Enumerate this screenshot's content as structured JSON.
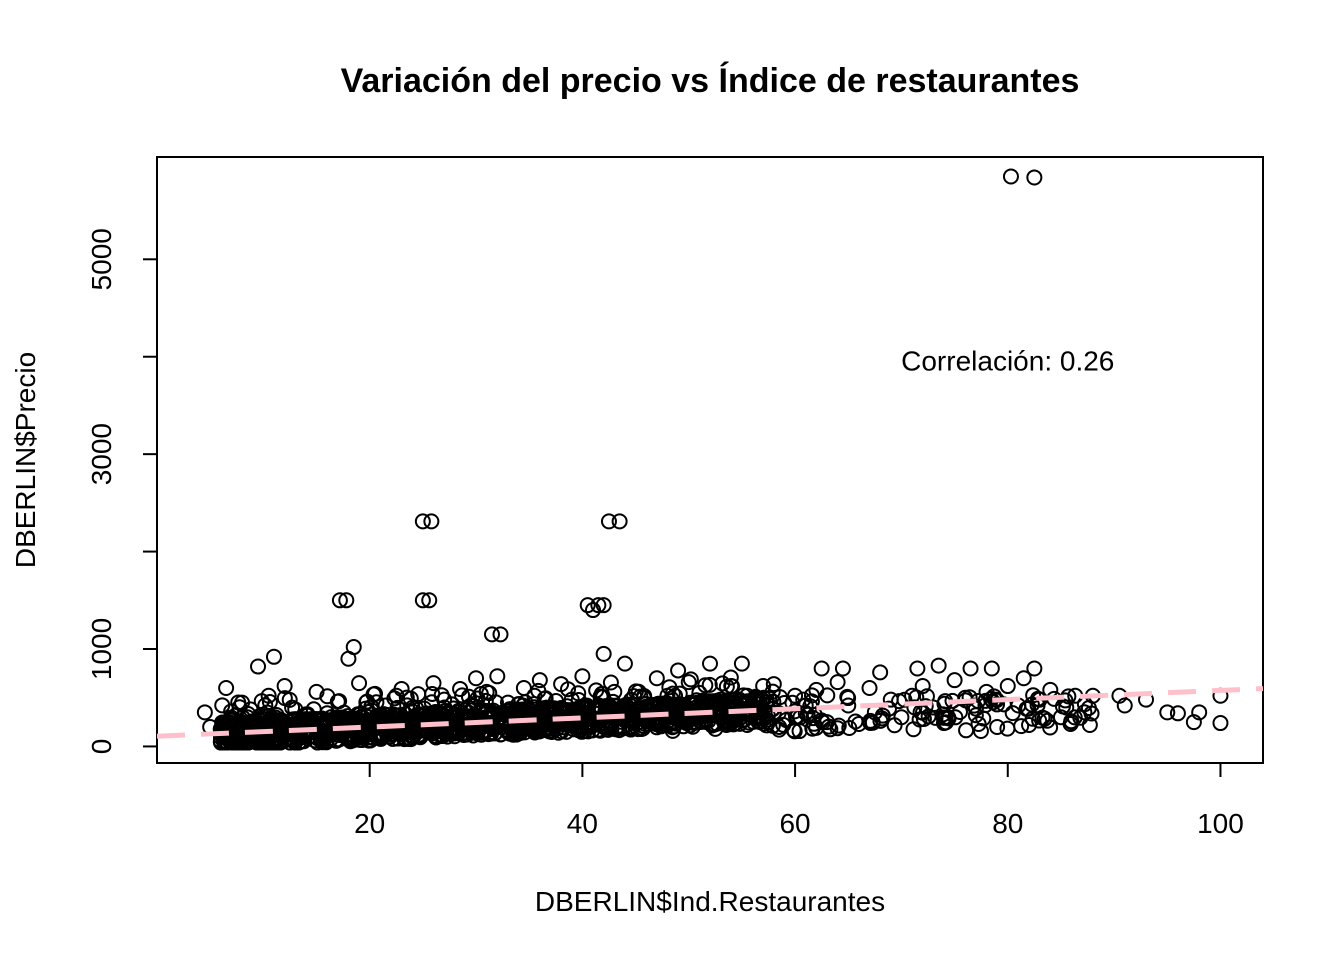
{
  "chart_data": {
    "type": "scatter",
    "title": "Variación del precio vs Índice de restaurantes",
    "xlabel": "DBERLIN$Ind.Restaurantes",
    "ylabel": "DBERLIN$Precio",
    "xlim": [
      0,
      104
    ],
    "ylim": [
      -170,
      6050
    ],
    "xticks": [
      20,
      40,
      60,
      80,
      100
    ],
    "yticks": [
      0,
      1000,
      2000,
      3000,
      4000,
      5000
    ],
    "ytick_labels": [
      "0",
      "1000",
      "",
      "3000",
      "",
      "5000"
    ],
    "grid": false,
    "annotation": {
      "text": "Correlación: 0.26",
      "x": 80,
      "y": 3960
    },
    "trendline": {
      "intercept": 105,
      "slope": 4.7,
      "style": "dashed",
      "color": "#FFC0CB"
    },
    "points_sampled_note": "",
    "points": [
      [
        4.5,
        350
      ],
      [
        5,
        200
      ],
      [
        6,
        180
      ],
      [
        6.5,
        600
      ],
      [
        7,
        120
      ],
      [
        7.5,
        220
      ],
      [
        8,
        450
      ],
      [
        8.5,
        300
      ],
      [
        9,
        90
      ],
      [
        9.5,
        820
      ],
      [
        10,
        150
      ],
      [
        10.5,
        520
      ],
      [
        11,
        920
      ],
      [
        11.5,
        250
      ],
      [
        12,
        620
      ],
      [
        12.5,
        180
      ],
      [
        13,
        380
      ],
      [
        13.5,
        90
      ],
      [
        14,
        280
      ],
      [
        14.5,
        150
      ],
      [
        15,
        560
      ],
      [
        15.5,
        210
      ],
      [
        16,
        340
      ],
      [
        16.5,
        120
      ],
      [
        17,
        460
      ],
      [
        17.2,
        1500
      ],
      [
        17.8,
        1500
      ],
      [
        18,
        900
      ],
      [
        18.5,
        1020
      ],
      [
        19,
        650
      ],
      [
        19.5,
        260
      ],
      [
        20,
        180
      ],
      [
        20.5,
        540
      ],
      [
        21,
        130
      ],
      [
        21.5,
        420
      ],
      [
        22,
        300
      ],
      [
        22.5,
        200
      ],
      [
        23,
        590
      ],
      [
        23.5,
        150
      ],
      [
        24,
        360
      ],
      [
        25,
        2310
      ],
      [
        25.8,
        2310
      ],
      [
        25,
        1500
      ],
      [
        25.6,
        1500
      ],
      [
        26,
        650
      ],
      [
        26.5,
        250
      ],
      [
        27,
        480
      ],
      [
        27.5,
        160
      ],
      [
        28,
        330
      ],
      [
        28.5,
        590
      ],
      [
        29,
        200
      ],
      [
        29.5,
        420
      ],
      [
        30,
        700
      ],
      [
        30.5,
        140
      ],
      [
        31,
        560
      ],
      [
        31.5,
        1150
      ],
      [
        32.3,
        1150
      ],
      [
        32,
        720
      ],
      [
        32.5,
        260
      ],
      [
        33,
        450
      ],
      [
        33.5,
        120
      ],
      [
        34,
        350
      ],
      [
        34.5,
        600
      ],
      [
        35,
        210
      ],
      [
        35.5,
        520
      ],
      [
        36,
        680
      ],
      [
        36.5,
        170
      ],
      [
        37,
        400
      ],
      [
        37.5,
        280
      ],
      [
        38,
        640
      ],
      [
        38.5,
        150
      ],
      [
        39,
        480
      ],
      [
        39.5,
        330
      ],
      [
        40,
        720
      ],
      [
        40.5,
        1450
      ],
      [
        41,
        1400
      ],
      [
        41.5,
        1450
      ],
      [
        42,
        1450
      ],
      [
        42,
        950
      ],
      [
        42.5,
        2310
      ],
      [
        43.5,
        2310
      ],
      [
        43,
        560
      ],
      [
        43.5,
        300
      ],
      [
        44,
        850
      ],
      [
        44.5,
        200
      ],
      [
        45,
        420
      ],
      [
        46,
        260
      ],
      [
        47,
        700
      ],
      [
        48,
        520
      ],
      [
        48.5,
        160
      ],
      [
        49,
        780
      ],
      [
        49.5,
        330
      ],
      [
        50,
        660
      ],
      [
        50.5,
        240
      ],
      [
        51,
        550
      ],
      [
        52,
        850
      ],
      [
        52.5,
        180
      ],
      [
        53,
        480
      ],
      [
        53.5,
        300
      ],
      [
        54,
        620
      ],
      [
        55,
        850
      ],
      [
        55.5,
        220
      ],
      [
        56,
        400
      ],
      [
        57,
        620
      ],
      [
        58,
        640
      ],
      [
        58.5,
        200
      ],
      [
        60,
        520
      ],
      [
        60.5,
        300
      ],
      [
        61,
        420
      ],
      [
        62,
        580
      ],
      [
        62.5,
        800
      ],
      [
        63,
        250
      ],
      [
        64,
        660
      ],
      [
        64.5,
        800
      ],
      [
        65,
        420
      ],
      [
        66,
        230
      ],
      [
        67,
        600
      ],
      [
        67.5,
        350
      ],
      [
        68,
        760
      ],
      [
        69,
        480
      ],
      [
        70,
        300
      ],
      [
        71,
        520
      ],
      [
        71.5,
        800
      ],
      [
        72,
        620
      ],
      [
        73,
        400
      ],
      [
        73.5,
        830
      ],
      [
        74,
        240
      ],
      [
        75,
        680
      ],
      [
        76,
        500
      ],
      [
        76.5,
        800
      ],
      [
        77,
        320
      ],
      [
        78,
        560
      ],
      [
        78.5,
        800
      ],
      [
        79,
        200
      ],
      [
        80,
        620
      ],
      [
        80.3,
        5850
      ],
      [
        82.5,
        5840
      ],
      [
        81,
        420
      ],
      [
        81.5,
        700
      ],
      [
        82,
        220
      ],
      [
        82.5,
        800
      ],
      [
        83,
        480
      ],
      [
        84,
        580
      ],
      [
        85,
        300
      ],
      [
        85.5,
        400
      ],
      [
        86,
        250
      ],
      [
        88,
        520
      ],
      [
        90.5,
        520
      ],
      [
        91,
        420
      ],
      [
        93,
        480
      ],
      [
        95,
        350
      ],
      [
        96,
        340
      ],
      [
        97.5,
        250
      ],
      [
        98,
        350
      ],
      [
        100,
        520
      ],
      [
        100,
        240
      ]
    ]
  }
}
